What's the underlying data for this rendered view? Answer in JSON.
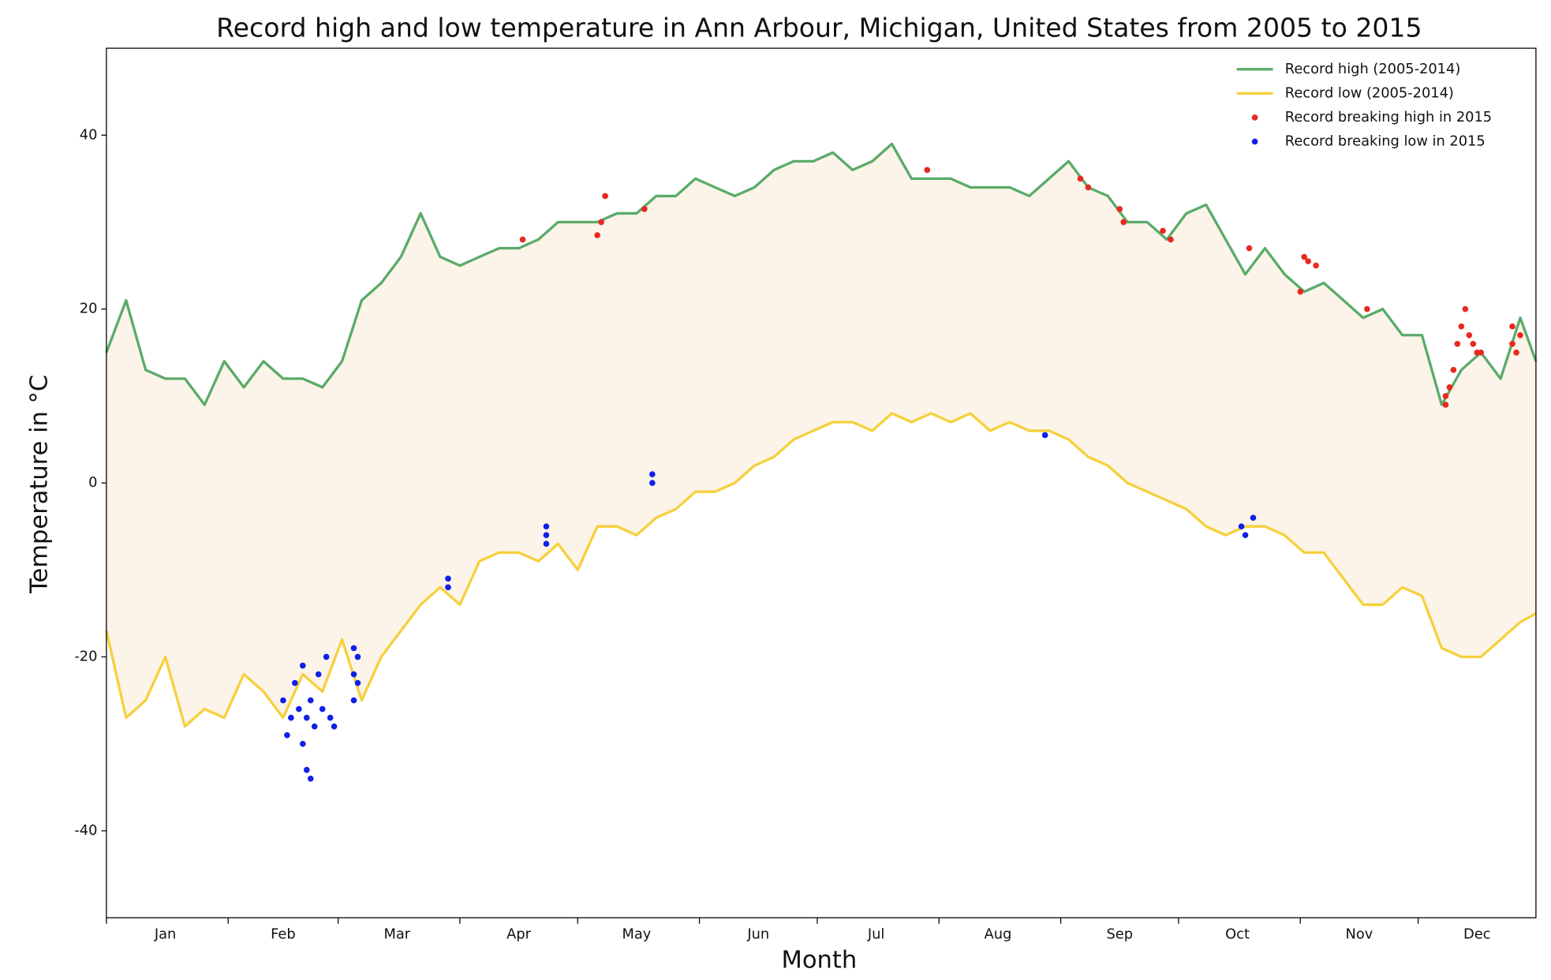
{
  "chart_data": {
    "type": "line",
    "title": "Record high and low temperature in Ann Arbour, Michigan, United States from 2005 to 2015",
    "xlabel": "Month",
    "ylabel": "Temperature in °C",
    "xlim": [
      1,
      365
    ],
    "ylim": [
      -50,
      50
    ],
    "yticks": [
      -40,
      -20,
      0,
      20,
      40
    ],
    "xticks": [
      {
        "value": 16,
        "label": "Jan"
      },
      {
        "value": 46,
        "label": "Feb"
      },
      {
        "value": 75,
        "label": "Mar"
      },
      {
        "value": 106,
        "label": "Apr"
      },
      {
        "value": 136,
        "label": "May"
      },
      {
        "value": 167,
        "label": "Jun"
      },
      {
        "value": 197,
        "label": "Jul"
      },
      {
        "value": 228,
        "label": "Aug"
      },
      {
        "value": 259,
        "label": "Sep"
      },
      {
        "value": 289,
        "label": "Oct"
      },
      {
        "value": 320,
        "label": "Nov"
      },
      {
        "value": 350,
        "label": "Dec"
      }
    ],
    "xminorticks": [
      1,
      32,
      60,
      91,
      121,
      152,
      182,
      213,
      244,
      274,
      305,
      335
    ],
    "fill_between": true,
    "fill_color": "#fcf4e8",
    "grid": false,
    "legend": "upper right",
    "x": [
      1,
      6,
      11,
      16,
      21,
      26,
      31,
      36,
      41,
      46,
      51,
      56,
      61,
      66,
      71,
      76,
      81,
      86,
      91,
      96,
      101,
      106,
      111,
      116,
      121,
      126,
      131,
      136,
      141,
      146,
      151,
      156,
      161,
      166,
      171,
      176,
      181,
      186,
      191,
      196,
      201,
      206,
      211,
      216,
      221,
      226,
      231,
      236,
      241,
      246,
      251,
      256,
      261,
      266,
      271,
      276,
      281,
      286,
      291,
      296,
      301,
      306,
      311,
      316,
      321,
      326,
      331,
      336,
      341,
      346,
      351,
      356,
      361,
      365
    ],
    "series": [
      {
        "name": "Record high (2005-2014)",
        "color": "#5aab6a",
        "values": [
          15,
          21,
          13,
          12,
          12,
          9,
          14,
          11,
          14,
          12,
          12,
          11,
          14,
          21,
          23,
          26,
          31,
          26,
          25,
          26,
          27,
          27,
          28,
          30,
          30,
          30,
          31,
          31,
          33,
          33,
          35,
          34,
          33,
          34,
          36,
          37,
          37,
          38,
          36,
          37,
          39,
          35,
          35,
          35,
          34,
          34,
          34,
          33,
          35,
          37,
          34,
          33,
          30,
          30,
          28,
          31,
          32,
          28,
          24,
          27,
          24,
          22,
          23,
          21,
          19,
          20,
          17,
          17,
          9,
          13,
          15,
          12,
          19,
          14
        ]
      },
      {
        "name": "Record low (2005-2014)",
        "color": "#f6d03c",
        "values": [
          -17,
          -27,
          -25,
          -20,
          -28,
          -26,
          -27,
          -22,
          -24,
          -27,
          -22,
          -24,
          -18,
          -25,
          -20,
          -17,
          -14,
          -12,
          -14,
          -9,
          -8,
          -8,
          -9,
          -7,
          -10,
          -5,
          -5,
          -6,
          -4,
          -3,
          -1,
          -1,
          0,
          2,
          3,
          5,
          6,
          7,
          7,
          6,
          8,
          7,
          8,
          7,
          8,
          6,
          7,
          6,
          6,
          5,
          3,
          2,
          0,
          -1,
          -2,
          -3,
          -5,
          -6,
          -5,
          -5,
          -6,
          -8,
          -8,
          -11,
          -14,
          -14,
          -12,
          -13,
          -19,
          -20,
          -20,
          -18,
          -16,
          -15
        ]
      }
    ],
    "scatter": [
      {
        "name": "Record breaking high in 2015",
        "color": "#e8291f",
        "x": [
          107,
          126,
          127,
          128,
          138,
          210,
          249,
          251,
          259,
          260,
          270,
          272,
          292,
          305,
          306,
          307,
          309,
          322,
          342,
          342,
          343,
          344,
          345,
          346,
          347,
          348,
          349,
          350,
          351,
          359,
          359,
          360,
          361
        ],
        "values": [
          28,
          28.5,
          30,
          33,
          31.5,
          36,
          35,
          34,
          31.5,
          30,
          29,
          28,
          27,
          22,
          26,
          25.5,
          25,
          20,
          9,
          10,
          11,
          13,
          16,
          18,
          20,
          17,
          16,
          15,
          15,
          18,
          16,
          15,
          17
        ]
      },
      {
        "name": "Record breaking low in 2015",
        "color": "#1020e8",
        "x": [
          46,
          47,
          48,
          49,
          50,
          51,
          51,
          52,
          52,
          53,
          53,
          54,
          55,
          56,
          57,
          58,
          59,
          64,
          64,
          64,
          65,
          65,
          88,
          88,
          113,
          113,
          113,
          140,
          140,
          240,
          290,
          291,
          293
        ],
        "values": [
          -25,
          -29,
          -27,
          -23,
          -26,
          -30,
          -21,
          -33,
          -27,
          -34,
          -25,
          -28,
          -22,
          -26,
          -20,
          -27,
          -28,
          -19,
          -22,
          -25,
          -20,
          -23,
          -11,
          -12,
          -5,
          -6,
          -7,
          0,
          1,
          5.5,
          -5,
          -6,
          -4
        ]
      }
    ]
  }
}
